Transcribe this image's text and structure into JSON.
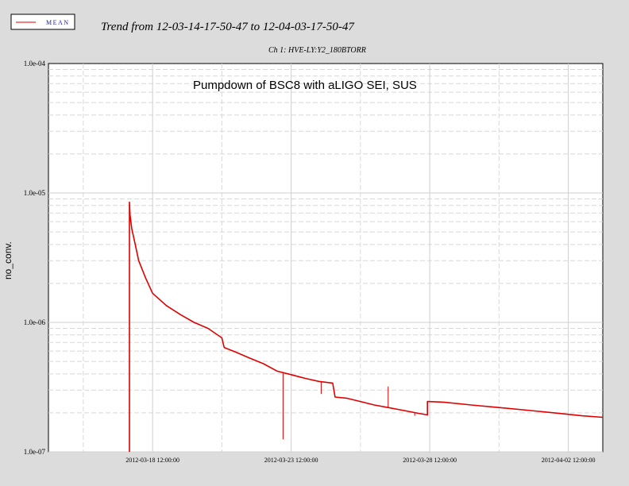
{
  "chart_data": {
    "type": "line",
    "trend_title": "Trend from 12-03-14-17-50-47 to 12-04-03-17-50-47",
    "channel_label": "Ch 1: HVE-LY:Y2_180BTORR",
    "annotation": "Pumpdown of BSC8 with aLIGO SEI, SUS",
    "legend": {
      "label": "MEAN",
      "placement": "top-left"
    },
    "ylabel": "no_conv.",
    "xlabel": "",
    "y_scale": "log",
    "ylim": [
      1e-07,
      0.0001
    ],
    "y_ticks": [
      {
        "value": 1e-07,
        "label": "1.0e-07"
      },
      {
        "value": 1e-06,
        "label": "1.0e-06"
      },
      {
        "value": 1e-05,
        "label": "1.0e-05"
      },
      {
        "value": 0.0001,
        "label": "1.0e-04"
      }
    ],
    "xlim": [
      "2012-03-14 17:50:47",
      "2012-04-03 17:50:47"
    ],
    "x_ticks": [
      {
        "value": "2012-03-18 12:00:00",
        "label": "2012-03-18 12:00:00"
      },
      {
        "value": "2012-03-23 12:00:00",
        "label": "2012-03-23 12:00:00"
      },
      {
        "value": "2012-03-28 12:00:00",
        "label": "2012-03-28 12:00:00"
      },
      {
        "value": "2012-04-02 12:00:00",
        "label": "2012-04-02 12:00:00"
      }
    ],
    "x_minor_ticks": [
      "2012-03-16 00:00:00",
      "2012-03-21 00:00:00",
      "2012-03-26 00:00:00",
      "2012-03-31 00:00:00"
    ],
    "grid": true,
    "series": [
      {
        "name": "MEAN",
        "color": "#e00000",
        "points": [
          [
            "2012-03-17 16:00:00",
            1e-07
          ],
          [
            "2012-03-17 16:00:00",
            8.5e-06
          ],
          [
            "2012-03-17 16:30:00",
            6.8e-06
          ],
          [
            "2012-03-17 18:00:00",
            5.3e-06
          ],
          [
            "2012-03-17 21:00:00",
            4e-06
          ],
          [
            "2012-03-18 00:00:00",
            3e-06
          ],
          [
            "2012-03-18 06:00:00",
            2.2e-06
          ],
          [
            "2012-03-18 12:00:00",
            1.68e-06
          ],
          [
            "2012-03-19 00:00:00",
            1.35e-06
          ],
          [
            "2012-03-19 12:00:00",
            1.15e-06
          ],
          [
            "2012-03-20 00:00:00",
            1e-06
          ],
          [
            "2012-03-20 12:00:00",
            9e-07
          ],
          [
            "2012-03-21 00:00:00",
            7.6e-07
          ],
          [
            "2012-03-21 02:00:00",
            6.4e-07
          ],
          [
            "2012-03-21 12:00:00",
            5.9e-07
          ],
          [
            "2012-03-22 00:00:00",
            5.3e-07
          ],
          [
            "2012-03-22 12:00:00",
            4.8e-07
          ],
          [
            "2012-03-23 00:00:00",
            4.2e-07
          ],
          [
            "2012-03-23 12:00:00",
            3.95e-07
          ],
          [
            "2012-03-24 00:00:00",
            3.7e-07
          ],
          [
            "2012-03-24 12:00:00",
            3.5e-07
          ],
          [
            "2012-03-25 00:00:00",
            3.4e-07
          ],
          [
            "2012-03-25 02:00:00",
            2.65e-07
          ],
          [
            "2012-03-25 12:00:00",
            2.6e-07
          ],
          [
            "2012-03-26 00:00:00",
            2.45e-07
          ],
          [
            "2012-03-26 12:00:00",
            2.3e-07
          ],
          [
            "2012-03-27 00:00:00",
            2.2e-07
          ],
          [
            "2012-03-27 12:00:00",
            2.1e-07
          ],
          [
            "2012-03-28 00:00:00",
            2e-07
          ],
          [
            "2012-03-28 10:00:00",
            1.93e-07
          ],
          [
            "2012-03-28 10:00:00",
            2.45e-07
          ],
          [
            "2012-03-29 00:00:00",
            2.42e-07
          ],
          [
            "2012-03-30 00:00:00",
            2.3e-07
          ],
          [
            "2012-03-31 00:00:00",
            2.2e-07
          ],
          [
            "2012-04-01 00:00:00",
            2.1e-07
          ],
          [
            "2012-04-02 00:00:00",
            2e-07
          ],
          [
            "2012-04-03 00:00:00",
            1.9e-07
          ],
          [
            "2012-04-03 17:50:47",
            1.85e-07
          ]
        ],
        "spikes": [
          [
            "2012-03-23 05:00:00",
            1.25e-07
          ],
          [
            "2012-03-24 14:00:00",
            2.8e-07
          ],
          [
            "2012-03-27 00:00:00",
            3.2e-07
          ],
          [
            "2012-03-27 23:00:00",
            1.9e-07
          ]
        ]
      }
    ]
  }
}
